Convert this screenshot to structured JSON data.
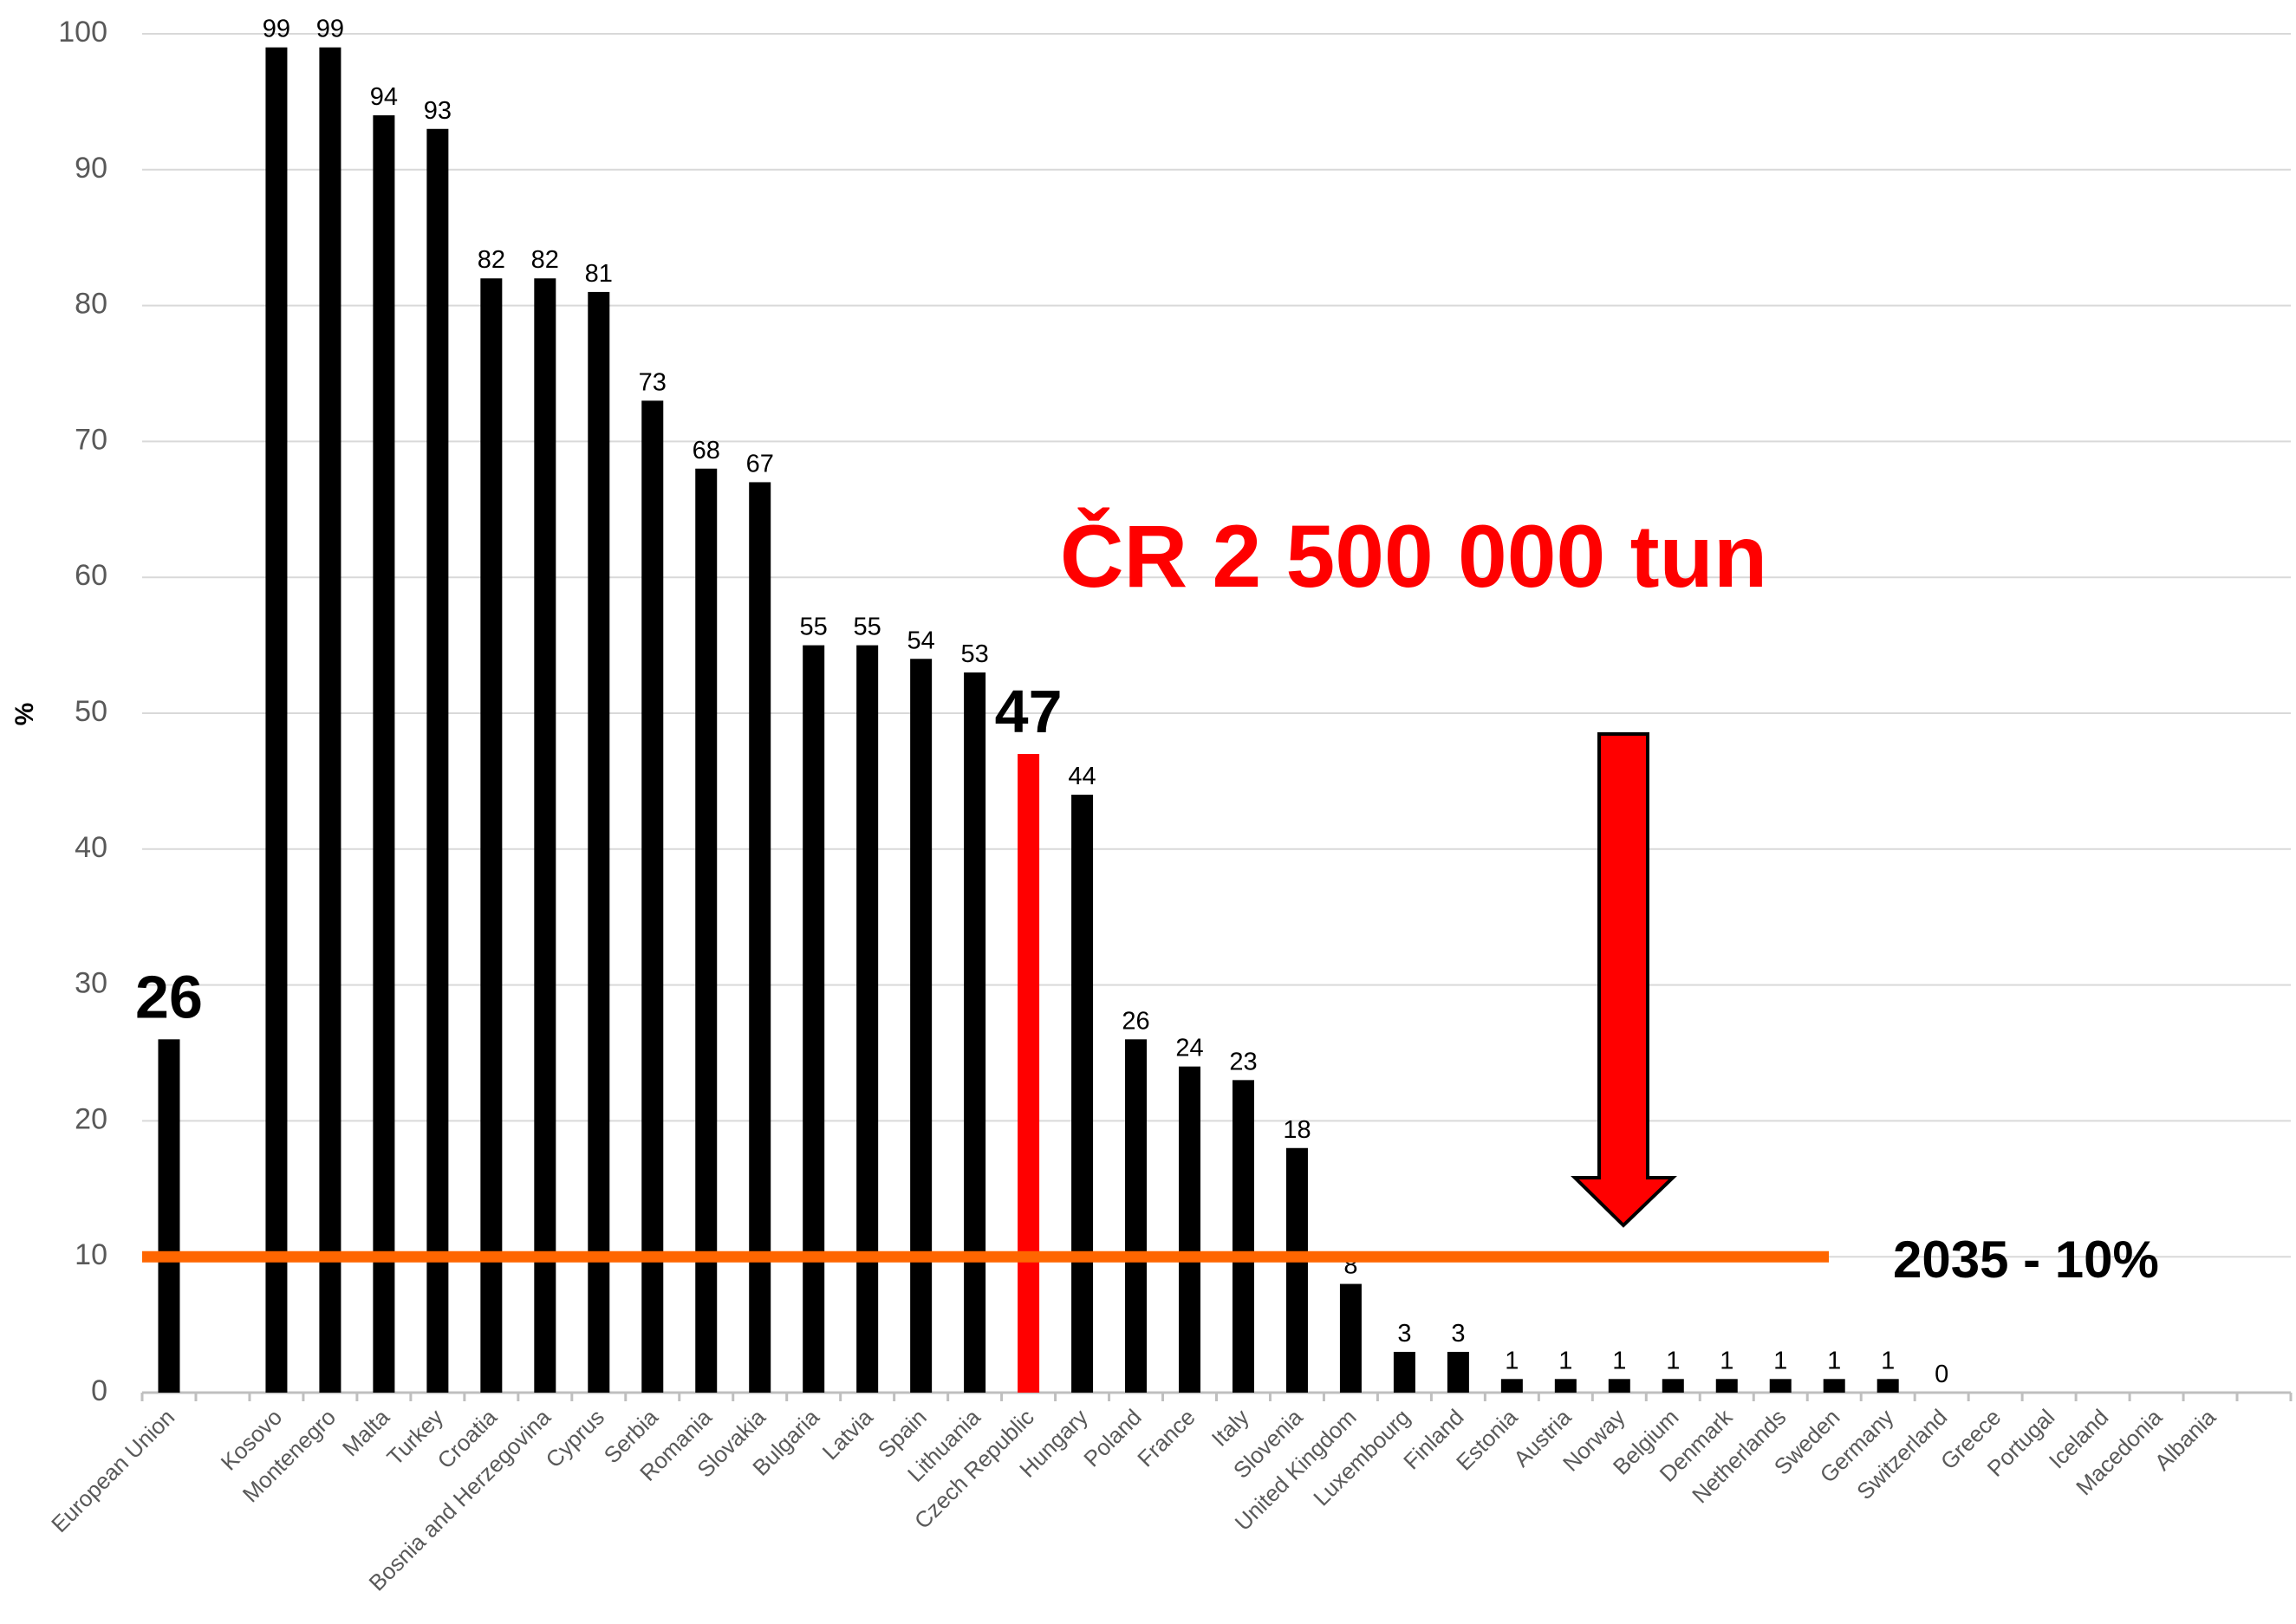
{
  "chart_data": {
    "type": "bar",
    "y_label": "%",
    "categories": [
      "European Union",
      null,
      "Kosovo",
      "Montenegro",
      "Malta",
      "Turkey",
      "Croatia",
      "Bosnia and Herzegovina",
      "Cyprus",
      "Serbia",
      "Romania",
      "Slovakia",
      "Bulgaria",
      "Latvia",
      "Spain",
      "Lithuania",
      "Czech Republic",
      "Hungary",
      "Poland",
      "France",
      "Italy",
      "Slovenia",
      "United Kingdom",
      "Luxembourg",
      "Finland",
      "Estonia",
      "Austria",
      "Norway",
      "Belgium",
      "Denmark",
      "Netherlands",
      "Sweden",
      "Germany",
      "Switzerland",
      "Greece",
      "Portugal",
      "Iceland",
      "Macedonia",
      "Albania",
      null
    ],
    "values": [
      26,
      null,
      99,
      99,
      94,
      93,
      82,
      82,
      81,
      73,
      68,
      67,
      55,
      55,
      54,
      53,
      47,
      44,
      26,
      24,
      23,
      18,
      8,
      3,
      3,
      1,
      1,
      1,
      1,
      1,
      1,
      1,
      1,
      0,
      null,
      null,
      null,
      null,
      null,
      null
    ],
    "color": "#000000",
    "highlight_index": 16,
    "highlight_color": "#ff0000",
    "emphasized": [
      0,
      16
    ],
    "ylim": [
      0,
      100
    ],
    "yticks": [
      0,
      10,
      20,
      30,
      40,
      50,
      60,
      70,
      80,
      90,
      100
    ],
    "grid": true,
    "reference_line": {
      "value": 10,
      "label": "2035  - 10%",
      "color": "#ff6600"
    },
    "annotation": "ČR 2 500 000 tun"
  }
}
